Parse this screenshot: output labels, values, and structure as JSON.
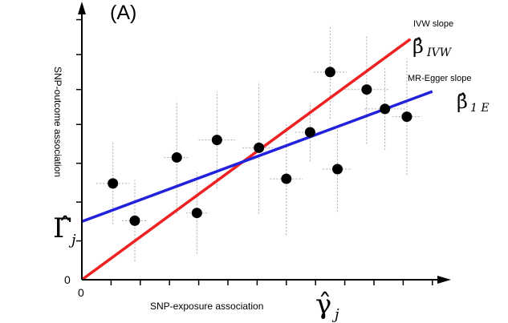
{
  "chart_data": {
    "type": "scatter",
    "panel_label": "(A)",
    "xlabel": "SNP-exposure association",
    "xlabel_symbol": "γ̂",
    "xlabel_subscript": "j",
    "ylabel": "SNP-outcome association",
    "ylabel_symbol": "Γ̂",
    "ylabel_subscript": "j",
    "x_origin_label": "0",
    "y_origin_label": "0",
    "xlim": [
      0,
      10
    ],
    "ylim": [
      0,
      7
    ],
    "x_ticks": [
      0.8,
      1.6,
      2.4,
      3.2,
      4.0,
      4.8,
      5.6,
      6.4,
      7.2,
      8.0,
      8.8,
      9.6
    ],
    "y_ticks": [
      1.0,
      2.0,
      3.0,
      4.0,
      4.9,
      5.8,
      6.7
    ],
    "grid": false,
    "legend": "none",
    "points": [
      {
        "x": 0.85,
        "y": 2.48,
        "x_err": 0.45,
        "y_err": 1.05
      },
      {
        "x": 1.45,
        "y": 1.52,
        "x_err": 0.35,
        "y_err": 1.05
      },
      {
        "x": 2.6,
        "y": 3.15,
        "x_err": 0.35,
        "y_err": 1.45
      },
      {
        "x": 3.15,
        "y": 1.72,
        "x_err": 0.3,
        "y_err": 1.05
      },
      {
        "x": 3.7,
        "y": 3.6,
        "x_err": 0.5,
        "y_err": 1.25
      },
      {
        "x": 4.85,
        "y": 3.4,
        "x_err": 0.45,
        "y_err": 1.7
      },
      {
        "x": 5.6,
        "y": 2.6,
        "x_err": 0.45,
        "y_err": 1.45
      },
      {
        "x": 6.25,
        "y": 3.8,
        "x_err": 0.4,
        "y_err": 0.75
      },
      {
        "x": 6.8,
        "y": 5.35,
        "x_err": 0.45,
        "y_err": 1.2
      },
      {
        "x": 7.0,
        "y": 2.85,
        "x_err": 0.4,
        "y_err": 1.1
      },
      {
        "x": 7.8,
        "y": 4.9,
        "x_err": 0.6,
        "y_err": 1.4
      },
      {
        "x": 8.3,
        "y": 4.4,
        "x_err": 0.55,
        "y_err": 1.05
      },
      {
        "x": 8.9,
        "y": 4.2,
        "x_err": 0.4,
        "y_err": 1.5
      }
    ],
    "lines": [
      {
        "name": "IVW slope",
        "symbol": "β̂",
        "subscript": "IVW",
        "color": "#ee2222",
        "intercept": 0.0,
        "x_start": 0.0,
        "x_end": 9.0,
        "y_end": 6.2
      },
      {
        "name": "MR-Egger slope",
        "symbol": "β̂",
        "subscript": "1 E",
        "color": "#2222dd",
        "intercept": 1.5,
        "x_start": 0.0,
        "x_end": 9.6,
        "y_end": 4.85
      }
    ],
    "marker_color": "#000000",
    "errorbar_color": "#aaaaaa",
    "axis_color": "#000000"
  }
}
